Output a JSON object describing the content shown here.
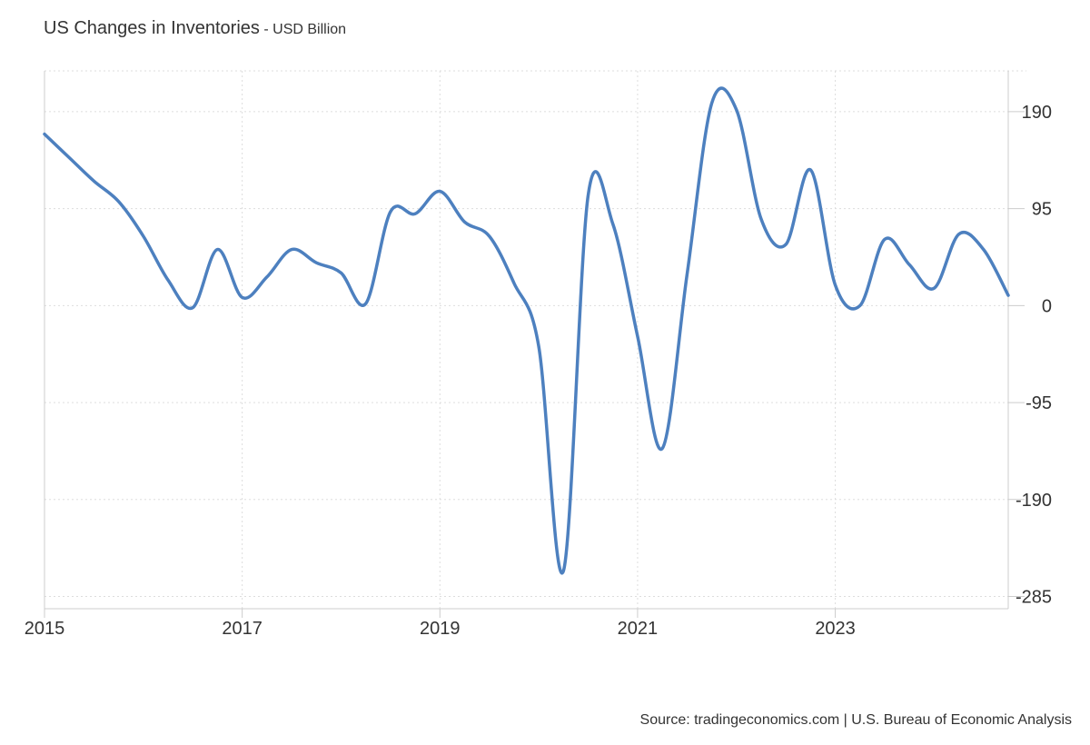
{
  "chart_data": {
    "type": "line",
    "title": "US Changes in Inventories",
    "subtitle": "- USD Billion",
    "source": "Source: tradingeconomics.com | U.S. Bureau of Economic Analysis",
    "xlabel": "",
    "ylabel": "",
    "x_ticks": [
      "2015",
      "2017",
      "2019",
      "2021",
      "2023"
    ],
    "y_ticks": [
      "190",
      "95",
      "0",
      "-95",
      "-190",
      "-285"
    ],
    "x_range": [
      2015.0,
      2024.75
    ],
    "y_range": [
      -297,
      230
    ],
    "grid": true,
    "line_color": "#4d80bf",
    "series": [
      {
        "name": "",
        "x": [
          2015.0,
          2015.25,
          2015.5,
          2015.75,
          2016.0,
          2016.25,
          2016.5,
          2016.75,
          2017.0,
          2017.25,
          2017.5,
          2017.75,
          2018.0,
          2018.25,
          2018.5,
          2018.75,
          2019.0,
          2019.25,
          2019.5,
          2019.75,
          2020.0,
          2020.25,
          2020.5,
          2020.75,
          2021.0,
          2021.25,
          2021.5,
          2021.75,
          2022.0,
          2022.25,
          2022.5,
          2022.75,
          2023.0,
          2023.25,
          2023.5,
          2023.75,
          2024.0,
          2024.25,
          2024.5,
          2024.75
        ],
        "values": [
          168,
          145,
          122,
          102,
          68,
          25,
          -2,
          55,
          8,
          28,
          55,
          42,
          32,
          2,
          92,
          90,
          112,
          82,
          68,
          22,
          -40,
          -260,
          108,
          80,
          -30,
          -140,
          30,
          198,
          192,
          85,
          60,
          133,
          20,
          0,
          65,
          40,
          17,
          70,
          55,
          10
        ]
      }
    ]
  }
}
